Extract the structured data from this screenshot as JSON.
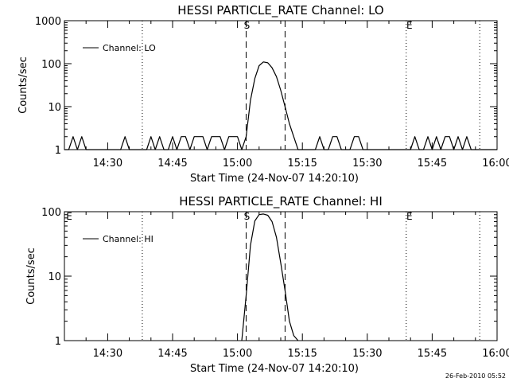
{
  "chart_data": [
    {
      "type": "line",
      "title": "HESSI PARTICLE_RATE Channel: LO",
      "xlabel": "Start Time (24-Nov-07 14:20:10)",
      "ylabel": "Counts/sec",
      "yscale": "log",
      "xlim": [
        "14:20",
        "16:00"
      ],
      "ylim": [
        1,
        1000
      ],
      "x_ticks": [
        "14:30",
        "14:45",
        "15:00",
        "15:15",
        "15:30",
        "15:45",
        "16:00"
      ],
      "y_ticks": [
        "1",
        "10",
        "100",
        "1000"
      ],
      "grid": false,
      "legend": {
        "position": "top-left",
        "entries": [
          "Channel: LO"
        ]
      },
      "annotations": {
        "S": "S",
        "E": "E",
        "dashed_lines_x": [
          "15:02",
          "15:11"
        ],
        "dotted_lines_x": [
          "14:38",
          "15:39",
          "15:56"
        ],
        "S_label_x": "15:02",
        "E_label_x": "15:39"
      },
      "series": [
        {
          "name": "Channel: LO",
          "x": [
            "14:20",
            "14:21",
            "14:22",
            "14:23",
            "14:24",
            "14:25",
            "14:26",
            "14:27",
            "14:28",
            "14:29",
            "14:30",
            "14:31",
            "14:32",
            "14:33",
            "14:34",
            "14:35",
            "14:36",
            "14:37",
            "14:38",
            "14:39",
            "14:40",
            "14:41",
            "14:42",
            "14:43",
            "14:44",
            "14:45",
            "14:46",
            "14:47",
            "14:48",
            "14:49",
            "14:50",
            "14:51",
            "14:52",
            "14:53",
            "14:54",
            "14:55",
            "14:56",
            "14:57",
            "14:58",
            "14:59",
            "15:00",
            "15:01",
            "15:02",
            "15:03",
            "15:04",
            "15:05",
            "15:06",
            "15:07",
            "15:08",
            "15:09",
            "15:10",
            "15:11",
            "15:12",
            "15:13",
            "15:14",
            "15:15",
            "15:16",
            "15:17",
            "15:18",
            "15:19",
            "15:20",
            "15:21",
            "15:22",
            "15:23",
            "15:24",
            "15:25",
            "15:26",
            "15:27",
            "15:28",
            "15:29",
            "15:30",
            "15:31",
            "15:32",
            "15:33",
            "15:34",
            "15:35",
            "15:36",
            "15:37",
            "15:38",
            "15:39",
            "15:40",
            "15:41",
            "15:42",
            "15:43",
            "15:44",
            "15:45",
            "15:46",
            "15:47",
            "15:48",
            "15:49",
            "15:50",
            "15:51",
            "15:52",
            "15:53",
            "15:54",
            "15:55",
            "15:56",
            "15:57",
            "15:58",
            "15:59",
            "16:00"
          ],
          "y": [
            1,
            1,
            2,
            1,
            2,
            1,
            1,
            1,
            1,
            1,
            1,
            1,
            1,
            1,
            2,
            1,
            1,
            1,
            1,
            1,
            2,
            1,
            2,
            1,
            1,
            2,
            1,
            2,
            2,
            1,
            2,
            2,
            2,
            1,
            2,
            2,
            2,
            1,
            2,
            2,
            2,
            1,
            2,
            14,
            45,
            90,
            110,
            105,
            80,
            50,
            24,
            10,
            4,
            2,
            1,
            1,
            1,
            1,
            1,
            2,
            1,
            1,
            2,
            2,
            1,
            1,
            1,
            2,
            2,
            1,
            1,
            1,
            1,
            1,
            1,
            1,
            1,
            1,
            1,
            1,
            1,
            2,
            1,
            1,
            2,
            1,
            2,
            1,
            2,
            2,
            1,
            2,
            1,
            2,
            1,
            1,
            1,
            1,
            1,
            1,
            1
          ]
        }
      ]
    },
    {
      "type": "line",
      "title": "HESSI PARTICLE_RATE Channel: HI",
      "xlabel": "Start Time (24-Nov-07 14:20:10)",
      "ylabel": "Counts/sec",
      "yscale": "log",
      "xlim": [
        "14:20",
        "16:00"
      ],
      "ylim": [
        1,
        100
      ],
      "x_ticks": [
        "14:30",
        "14:45",
        "15:00",
        "15:15",
        "15:30",
        "15:45",
        "16:00"
      ],
      "y_ticks": [
        "1",
        "10",
        "100"
      ],
      "grid": false,
      "legend": {
        "position": "top-left",
        "entries": [
          "Channel: HI"
        ]
      },
      "annotations": {
        "S": "S",
        "E": "E",
        "left_E": "E",
        "dashed_lines_x": [
          "15:02",
          "15:11"
        ],
        "dotted_lines_x": [
          "14:38",
          "15:39",
          "15:56"
        ],
        "S_label_x": "15:02",
        "E_label_x": "15:39"
      },
      "series": [
        {
          "name": "Channel: HI",
          "x": [
            "15:01",
            "15:02",
            "15:03",
            "15:04",
            "15:05",
            "15:06",
            "15:07",
            "15:08",
            "15:09",
            "15:10",
            "15:11",
            "15:12",
            "15:13",
            "15:14"
          ],
          "y": [
            1,
            5,
            30,
            72,
            90,
            92,
            88,
            70,
            40,
            16,
            6,
            2,
            1.2,
            1
          ]
        }
      ]
    }
  ],
  "footer": {
    "timestamp": "26-Feb-2010 05:52"
  }
}
